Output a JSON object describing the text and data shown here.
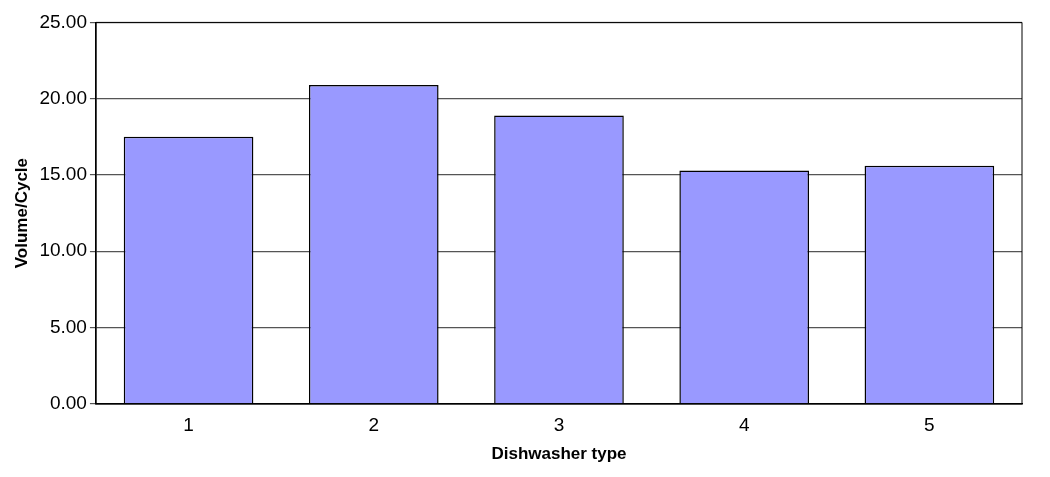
{
  "chart_data": {
    "type": "bar",
    "xlabel": "Dishwasher type",
    "ylabel": "Volume/Cycle",
    "categories": [
      "1",
      "2",
      "3",
      "4",
      "5"
    ],
    "values": [
      17.5,
      20.9,
      18.9,
      15.3,
      15.6
    ],
    "color": "#9999ff",
    "ylim": [
      0,
      25
    ],
    "yticks": [
      {
        "value": 0,
        "label": "0.00"
      },
      {
        "value": 5,
        "label": "5.00"
      },
      {
        "value": 10,
        "label": "10.00"
      },
      {
        "value": 15,
        "label": "15.00"
      },
      {
        "value": 20,
        "label": "20.00"
      },
      {
        "value": 25,
        "label": "25.00"
      }
    ],
    "grid": "y",
    "legend": false
  }
}
